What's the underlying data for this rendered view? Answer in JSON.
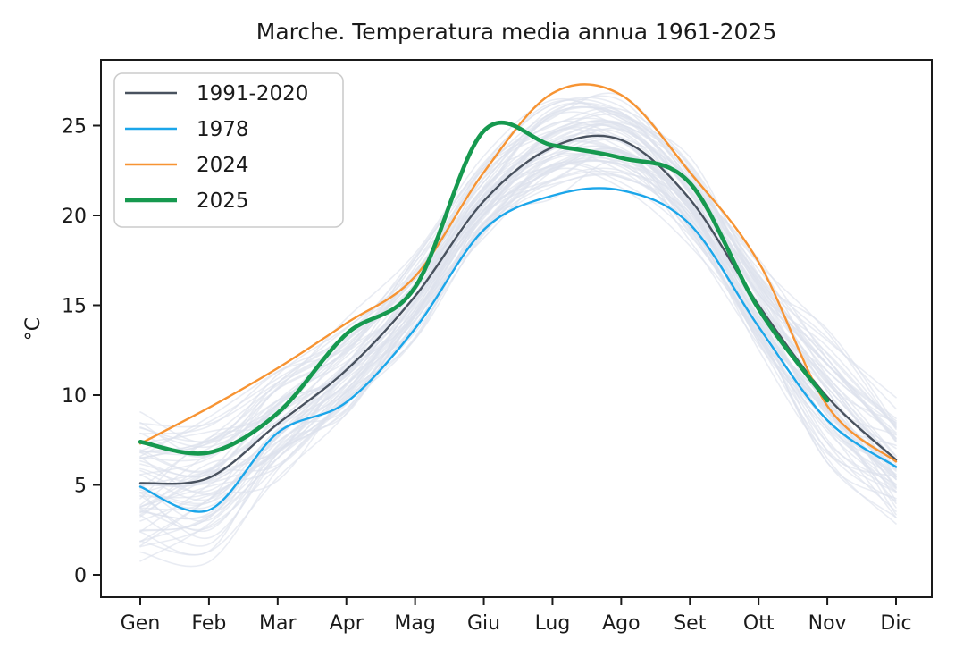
{
  "figure": {
    "background": "#ffffff"
  },
  "chart_data": {
    "type": "line",
    "title": "Marche. Temperatura media annua 1961-2025",
    "xlabel": "",
    "ylabel": "°C",
    "categories": [
      "Gen",
      "Feb",
      "Mar",
      "Apr",
      "Mag",
      "Giu",
      "Lug",
      "Ago",
      "Set",
      "Ott",
      "Nov",
      "Dic"
    ],
    "yticks": [
      0,
      5,
      10,
      15,
      20,
      25
    ],
    "ylim": [
      -1.2,
      28.6
    ],
    "grid": false,
    "legend_position": "upper left",
    "series": [
      {
        "name": "1991-2020",
        "color": "#49525f",
        "width": 2.4,
        "values": [
          5.1,
          5.4,
          8.4,
          11.4,
          15.5,
          20.8,
          23.8,
          24.2,
          20.9,
          15.0,
          9.9,
          6.4
        ]
      },
      {
        "name": "1978",
        "color": "#1ba6ea",
        "width": 2.4,
        "values": [
          4.9,
          3.6,
          7.9,
          9.6,
          13.7,
          19.2,
          21.1,
          21.4,
          19.5,
          13.8,
          8.6,
          6.0
        ]
      },
      {
        "name": "2024",
        "color": "#f79433",
        "width": 2.4,
        "values": [
          7.3,
          9.3,
          11.5,
          14.0,
          16.6,
          22.4,
          26.8,
          26.7,
          22.4,
          17.4,
          9.4,
          6.3
        ]
      },
      {
        "name": "2025",
        "color": "#16994f",
        "width": 4.6,
        "values": [
          7.4,
          6.8,
          9.0,
          13.4,
          16.0,
          24.7,
          23.9,
          23.2,
          21.8,
          14.8,
          9.7
        ]
      }
    ],
    "background_years": {
      "description": "faint lines: each single year 1961-2025",
      "count": 63,
      "color": "#dde2ed",
      "opacity": 0.65,
      "width": 1.6
    }
  }
}
